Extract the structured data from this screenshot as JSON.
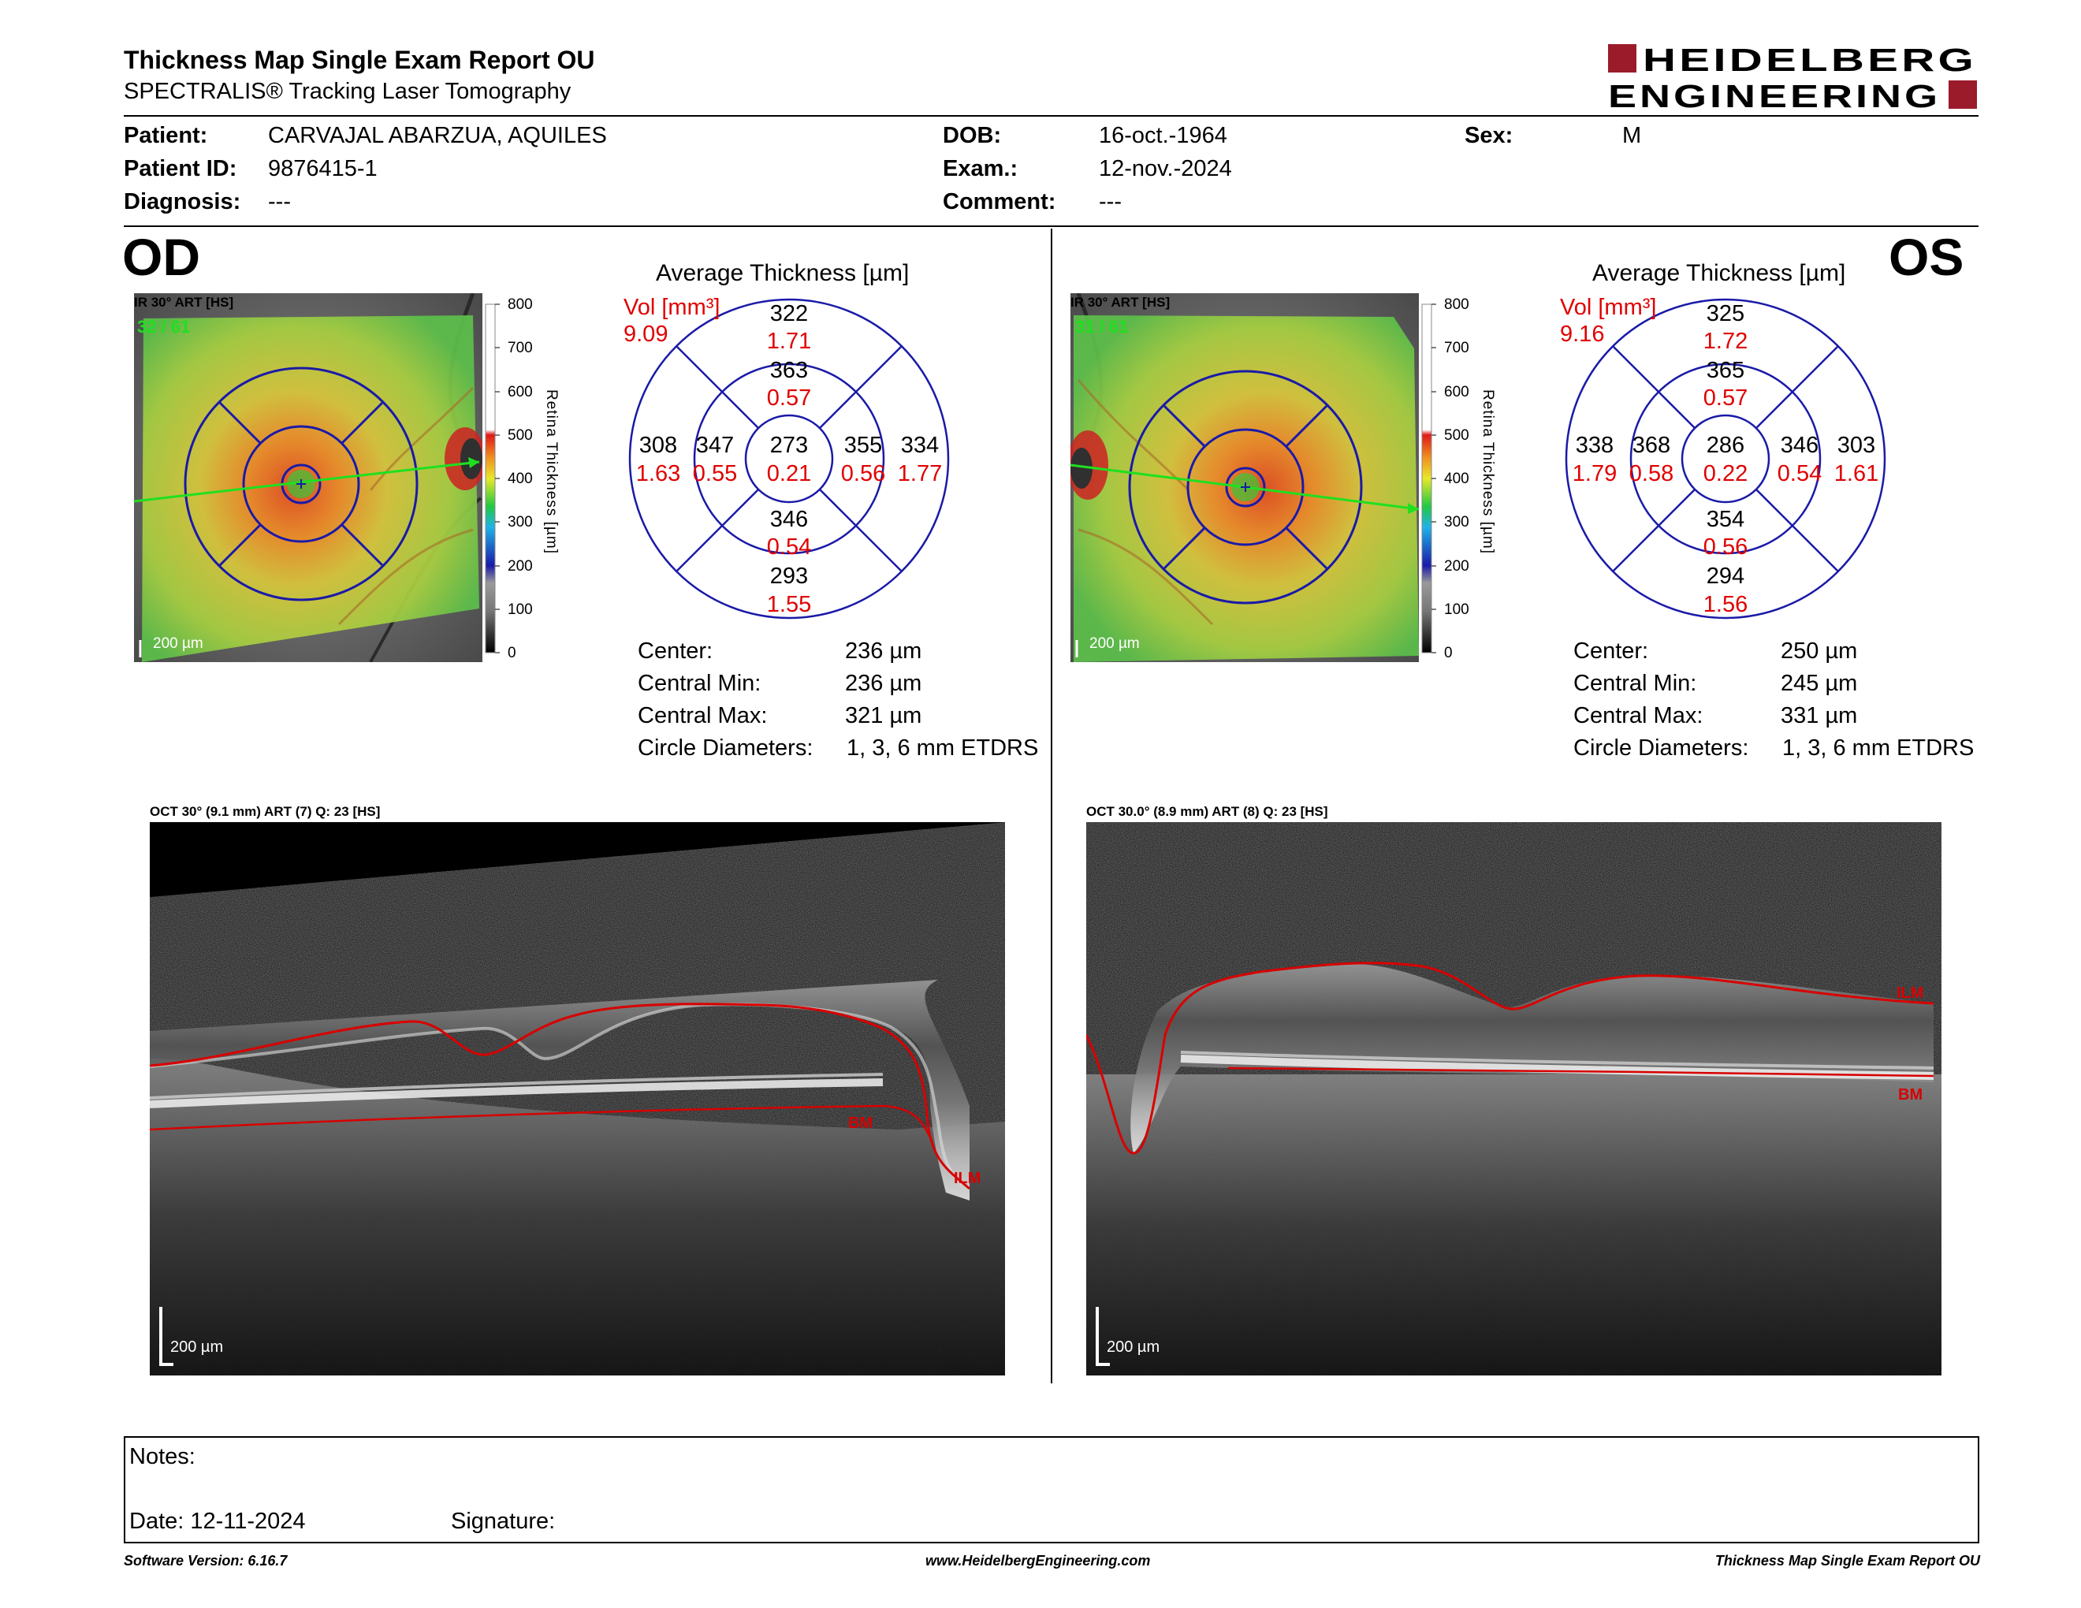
{
  "report": {
    "title": "Thickness Map Single Exam Report OU",
    "subtitle": "SPECTRALIS® Tracking Laser Tomography",
    "logo_line1": "HEIDELBERG",
    "logo_line2": "ENGINEERING"
  },
  "patient": {
    "patient_label": "Patient:",
    "patient_value": "CARVAJAL ABARZUA, AQUILES",
    "id_label": "Patient ID:",
    "id_value": "9876415-1",
    "diagnosis_label": "Diagnosis:",
    "diagnosis_value": "---",
    "dob_label": "DOB:",
    "dob_value": "16-oct.-1964",
    "exam_label": "Exam.:",
    "exam_value": "12-nov.-2024",
    "comment_label": "Comment:",
    "comment_value": "---",
    "sex_label": "Sex:",
    "sex_value": "M"
  },
  "od": {
    "eye_label": "OD",
    "fundus_label": "IR 30° ART [HS]",
    "fundus_counter": "32 / 61",
    "scale_label": "200 µm",
    "avg_title": "Average Thickness [µm]",
    "vol_label": "Vol [mm³]",
    "vol_value": "9.09",
    "sectors": {
      "outer_sup": [
        "322",
        "1.71"
      ],
      "inner_sup": [
        "363",
        "0.57"
      ],
      "outer_temp": [
        "308",
        "1.63"
      ],
      "inner_temp": [
        "347",
        "0.55"
      ],
      "center": [
        "273",
        "0.21"
      ],
      "inner_nas": [
        "355",
        "0.56"
      ],
      "outer_nas": [
        "334",
        "1.77"
      ],
      "inner_inf": [
        "346",
        "0.54"
      ],
      "outer_inf": [
        "293",
        "1.55"
      ]
    },
    "center_label": "Center:",
    "center_value": "236 µm",
    "cmin_label": "Central Min:",
    "cmin_value": "236 µm",
    "cmax_label": "Central Max:",
    "cmax_value": "321 µm",
    "diam_label": "Circle Diameters:",
    "diam_value": "1, 3, 6 mm ETDRS",
    "oct_label": "OCT 30° (9.1 mm) ART (7) Q: 23 [HS]",
    "oct_scale": "200 µm",
    "bm": "BM",
    "ilm": "ILM"
  },
  "os": {
    "eye_label": "OS",
    "fundus_label": "IR 30° ART [HS]",
    "fundus_counter": "31 / 61",
    "scale_label": "200 µm",
    "avg_title": "Average Thickness [µm]",
    "vol_label": "Vol [mm³]",
    "vol_value": "9.16",
    "sectors": {
      "outer_sup": [
        "325",
        "1.72"
      ],
      "inner_sup": [
        "365",
        "0.57"
      ],
      "outer_temp": [
        "338",
        "1.79"
      ],
      "inner_temp": [
        "368",
        "0.58"
      ],
      "center": [
        "286",
        "0.22"
      ],
      "inner_nas": [
        "346",
        "0.54"
      ],
      "outer_nas": [
        "303",
        "1.61"
      ],
      "inner_inf": [
        "354",
        "0.56"
      ],
      "outer_inf": [
        "294",
        "1.56"
      ]
    },
    "center_label": "Center:",
    "center_value": "250 µm",
    "cmin_label": "Central Min:",
    "cmin_value": "245 µm",
    "cmax_label": "Central Max:",
    "cmax_value": "331 µm",
    "diam_label": "Circle Diameters:",
    "diam_value": "1, 3, 6 mm ETDRS",
    "oct_label": "OCT 30.0° (8.9 mm) ART (8) Q: 23 [HS]",
    "oct_scale": "200 µm",
    "bm": "BM",
    "ilm": "ILM"
  },
  "colorbar": {
    "ticks": [
      "800",
      "700",
      "600",
      "500",
      "400",
      "300",
      "200",
      "100",
      "0"
    ],
    "title": "Retina Thickness [µm]"
  },
  "notes": {
    "notes_label": "Notes:",
    "date_label": "Date: 12-11-2024",
    "signature_label": "Signature:"
  },
  "footer": {
    "software": "Software Version: 6.16.7",
    "website": "www.HeidelbergEngineering.com",
    "report_name": "Thickness Map Single Exam Report OU"
  },
  "colors": {
    "ring_blue": "#1a1aa8",
    "vol_red": "#e00000",
    "logo_red": "#9b1b2b",
    "layer_red": "#d80000",
    "scan_green": "#1fe01f"
  }
}
